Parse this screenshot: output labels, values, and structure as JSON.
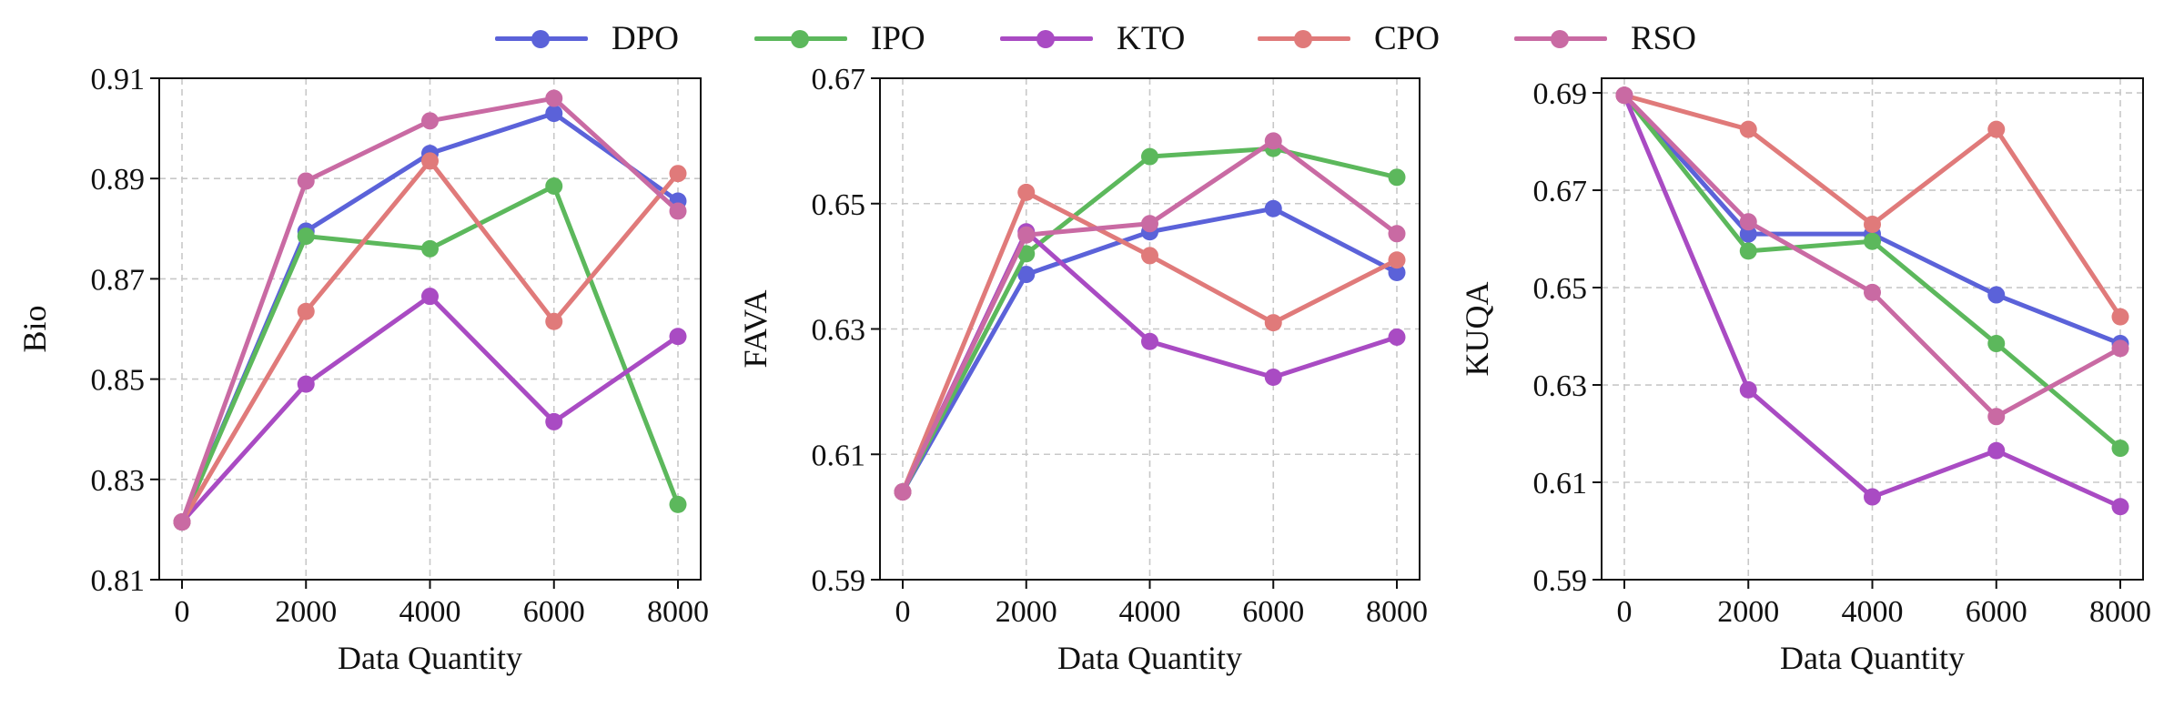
{
  "legend": [
    {
      "name": "DPO",
      "color": "#5b62d9"
    },
    {
      "name": "IPO",
      "color": "#5cb85c"
    },
    {
      "name": "KTO",
      "color": "#a94bc3"
    },
    {
      "name": "CPO",
      "color": "#e07a7a"
    },
    {
      "name": "RSO",
      "color": "#c96aa3"
    }
  ],
  "chart_data": [
    {
      "type": "line",
      "title": "",
      "xlabel": "Data Quantity",
      "ylabel": "Bio",
      "x": [
        0,
        2000,
        4000,
        6000,
        8000
      ],
      "xticks": [
        "0",
        "2000",
        "4000",
        "6000",
        "8000"
      ],
      "yticks": [
        "0.81",
        "0.83",
        "0.85",
        "0.87",
        "0.89",
        "0.91"
      ],
      "ylim": [
        0.81,
        0.91
      ],
      "grid": true,
      "series": [
        {
          "name": "DPO",
          "color": "#5b62d9",
          "values": [
            0.8215,
            0.8795,
            0.895,
            0.903,
            0.8855
          ]
        },
        {
          "name": "IPO",
          "color": "#5cb85c",
          "values": [
            0.8215,
            0.8785,
            0.876,
            0.8885,
            0.825
          ]
        },
        {
          "name": "KTO",
          "color": "#a94bc3",
          "values": [
            0.8215,
            0.849,
            0.8665,
            0.8415,
            0.8585
          ]
        },
        {
          "name": "CPO",
          "color": "#e07a7a",
          "values": [
            0.8215,
            0.8635,
            0.8935,
            0.8615,
            0.891
          ]
        },
        {
          "name": "RSO",
          "color": "#c96aa3",
          "values": [
            0.8215,
            0.8895,
            0.9015,
            0.906,
            0.8835
          ]
        }
      ]
    },
    {
      "type": "line",
      "title": "",
      "xlabel": "Data Quantity",
      "ylabel": "FAVA",
      "x": [
        0,
        2000,
        4000,
        6000,
        8000
      ],
      "xticks": [
        "0",
        "2000",
        "4000",
        "6000",
        "8000"
      ],
      "yticks": [
        "0.59",
        "0.61",
        "0.63",
        "0.65",
        "0.67"
      ],
      "ylim": [
        0.59,
        0.67
      ],
      "grid": true,
      "series": [
        {
          "name": "DPO",
          "color": "#5b62d9",
          "values": [
            0.604,
            0.6387,
            0.6455,
            0.6492,
            0.639
          ]
        },
        {
          "name": "IPO",
          "color": "#5cb85c",
          "values": [
            0.604,
            0.642,
            0.6575,
            0.6588,
            0.6542
          ]
        },
        {
          "name": "KTO",
          "color": "#a94bc3",
          "values": [
            0.604,
            0.6455,
            0.628,
            0.6223,
            0.6287
          ]
        },
        {
          "name": "CPO",
          "color": "#e07a7a",
          "values": [
            0.604,
            0.6518,
            0.6417,
            0.631,
            0.641
          ]
        },
        {
          "name": "RSO",
          "color": "#c96aa3",
          "values": [
            0.604,
            0.645,
            0.6468,
            0.66,
            0.6452
          ]
        }
      ]
    },
    {
      "type": "line",
      "title": "",
      "xlabel": "Data Quantity",
      "ylabel": "KUQA",
      "x": [
        0,
        2000,
        4000,
        6000,
        8000
      ],
      "xticks": [
        "0",
        "2000",
        "4000",
        "6000",
        "8000"
      ],
      "yticks": [
        "0.59",
        "0.61",
        "0.63",
        "0.65",
        "0.67",
        "0.69"
      ],
      "ylim": [
        0.59,
        0.693
      ],
      "grid": true,
      "series": [
        {
          "name": "DPO",
          "color": "#5b62d9",
          "values": [
            0.6895,
            0.661,
            0.661,
            0.6485,
            0.6385
          ]
        },
        {
          "name": "IPO",
          "color": "#5cb85c",
          "values": [
            0.6895,
            0.6575,
            0.6595,
            0.6385,
            0.617
          ]
        },
        {
          "name": "KTO",
          "color": "#a94bc3",
          "values": [
            0.6895,
            0.629,
            0.607,
            0.6165,
            0.605
          ]
        },
        {
          "name": "CPO",
          "color": "#e07a7a",
          "values": [
            0.6895,
            0.6825,
            0.663,
            0.6825,
            0.644
          ]
        },
        {
          "name": "RSO",
          "color": "#c96aa3",
          "values": [
            0.6895,
            0.6635,
            0.649,
            0.6235,
            0.6375
          ]
        }
      ]
    }
  ]
}
